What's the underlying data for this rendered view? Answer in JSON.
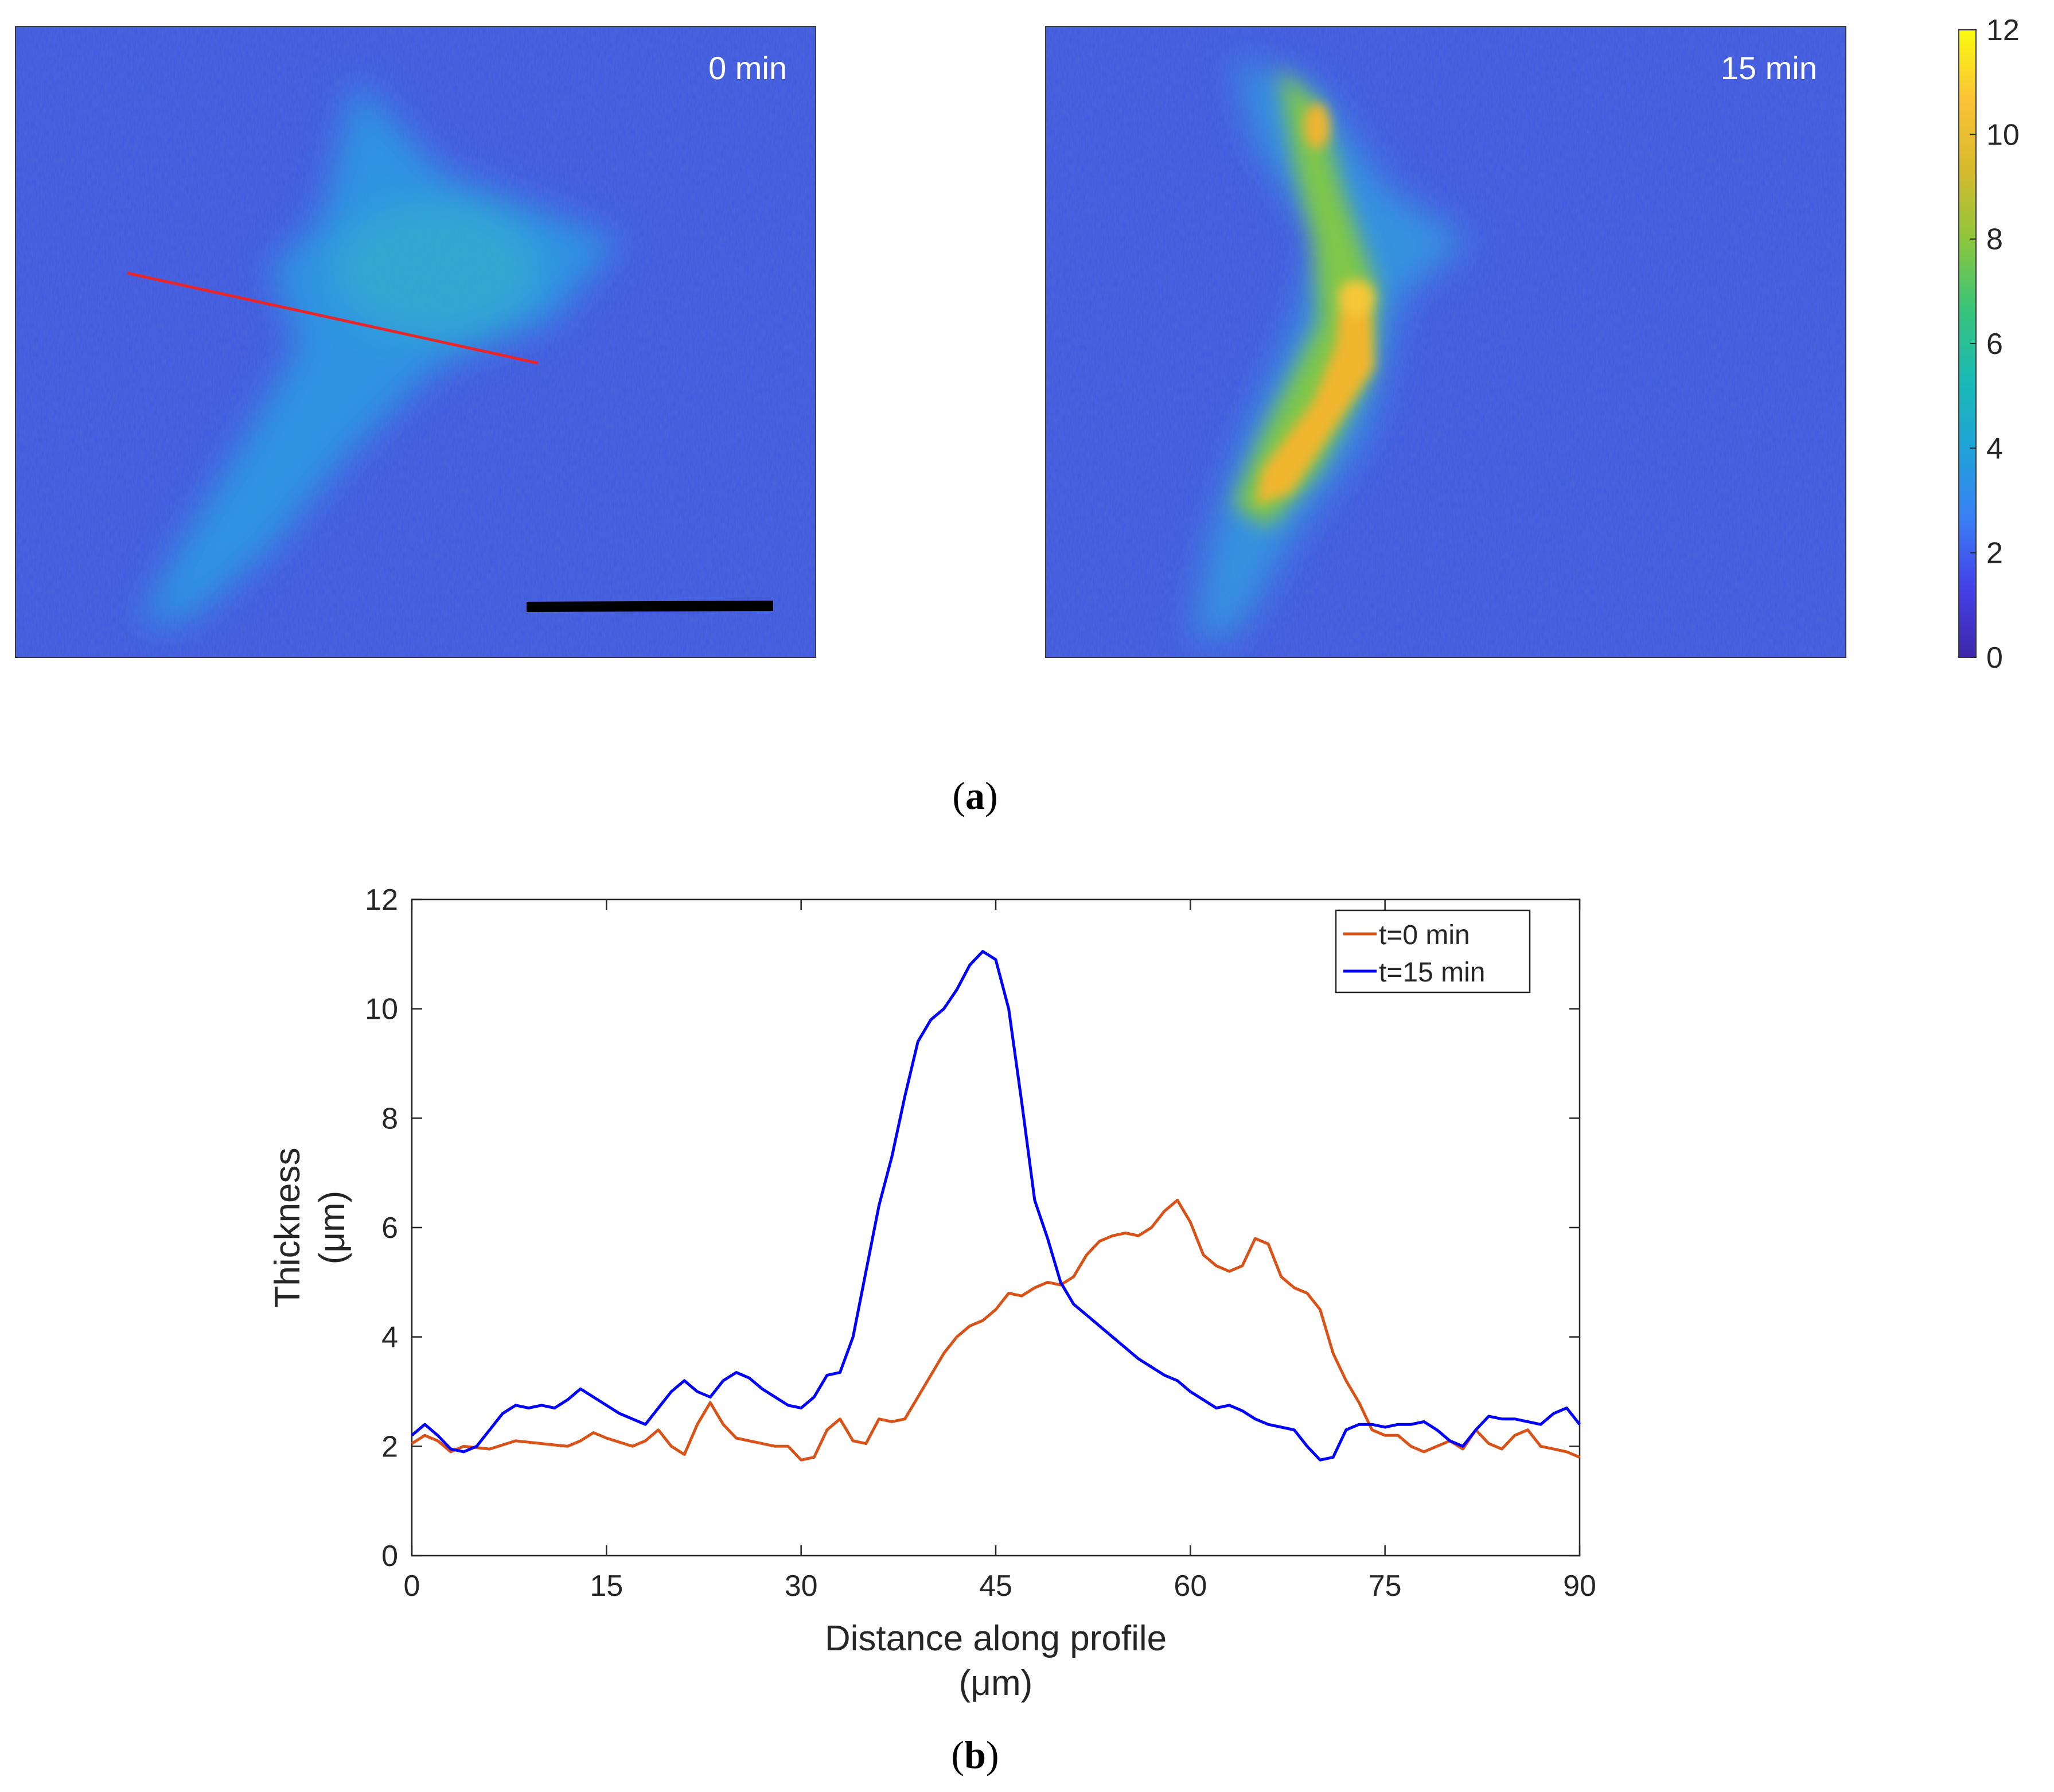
{
  "panel_a": {
    "label_open": "(",
    "label_letter": "a",
    "label_close": ")",
    "images": [
      {
        "timestamp": "0 min",
        "colors": {
          "background": "#3e58e0",
          "cell": "#33a8d6",
          "profile_line": "#e8262a",
          "scale_bar": "#000000"
        }
      },
      {
        "timestamp": "15 min",
        "colors": {
          "background": "#3e58e0",
          "cell": "#33a8d6",
          "cell_core": "#f0b52d",
          "cell_peak": "#f6d23a"
        }
      }
    ],
    "colorbar": {
      "ticks": [
        "0",
        "2",
        "4",
        "6",
        "8",
        "10",
        "12"
      ],
      "colormap": [
        "#3e26a8",
        "#4440e8",
        "#3a7ff4",
        "#1fa3d8",
        "#1cbab4",
        "#38c47a",
        "#8ec63c",
        "#d7ba2d",
        "#fbc338",
        "#f9fb0e"
      ]
    }
  },
  "panel_b": {
    "label_open": "(",
    "label_letter": "b",
    "label_close": ")"
  },
  "chart_data": {
    "type": "line",
    "xlabel": "Distance along profile",
    "xlabel_unit": "(μm)",
    "ylabel": "Thickness",
    "ylabel_unit": "(μm)",
    "xlim": [
      0,
      90
    ],
    "ylim": [
      0,
      12
    ],
    "xticks": [
      0,
      15,
      30,
      45,
      60,
      75,
      90
    ],
    "yticks": [
      0,
      2,
      4,
      6,
      8,
      10,
      12
    ],
    "legend_position": "top-right",
    "series": [
      {
        "name": "t=0 min",
        "color": "#d95319",
        "x": [
          0,
          1,
          2,
          3,
          4,
          6,
          8,
          10,
          12,
          13,
          14,
          15,
          17,
          18,
          19,
          20,
          21,
          22,
          23,
          24,
          25,
          26,
          28,
          29,
          30,
          31,
          32,
          33,
          34,
          35,
          36,
          37,
          38,
          39,
          40,
          41,
          42,
          43,
          44,
          45,
          46,
          47,
          48,
          49,
          50,
          51,
          52,
          53,
          54,
          55,
          56,
          57,
          58,
          59,
          60,
          61,
          62,
          63,
          64,
          65,
          66,
          67,
          68,
          69,
          70,
          71,
          72,
          73,
          74,
          75,
          76,
          77,
          78,
          79,
          80,
          81,
          82,
          83,
          84,
          85,
          86,
          87,
          88,
          89,
          90
        ],
        "values": [
          2.05,
          2.2,
          2.1,
          1.9,
          2.0,
          1.95,
          2.1,
          2.05,
          2.0,
          2.1,
          2.25,
          2.15,
          2.0,
          2.1,
          2.3,
          2.0,
          1.85,
          2.4,
          2.8,
          2.4,
          2.15,
          2.1,
          2.0,
          2.0,
          1.75,
          1.8,
          2.3,
          2.5,
          2.1,
          2.05,
          2.5,
          2.45,
          2.5,
          2.9,
          3.3,
          3.7,
          4.0,
          4.2,
          4.3,
          4.5,
          4.8,
          4.75,
          4.9,
          5.0,
          4.95,
          5.1,
          5.5,
          5.75,
          5.85,
          5.9,
          5.85,
          6.0,
          6.3,
          6.5,
          6.1,
          5.5,
          5.3,
          5.2,
          5.3,
          5.8,
          5.7,
          5.1,
          4.9,
          4.8,
          4.5,
          3.7,
          3.2,
          2.8,
          2.3,
          2.2,
          2.2,
          2.0,
          1.9,
          2.0,
          2.1,
          1.95,
          2.3,
          2.05,
          1.95,
          2.2,
          2.3,
          2.0,
          1.95,
          1.9,
          1.8
        ]
      },
      {
        "name": "t=15 min",
        "color": "#0000ff",
        "x": [
          0,
          1,
          2,
          3,
          4,
          5,
          6,
          7,
          8,
          9,
          10,
          11,
          12,
          13,
          14,
          15,
          16,
          17,
          18,
          19,
          20,
          21,
          22,
          23,
          24,
          25,
          26,
          27,
          28,
          29,
          30,
          31,
          32,
          33,
          34,
          35,
          36,
          37,
          38,
          39,
          40,
          41,
          42,
          43,
          44,
          45,
          46,
          47,
          48,
          49,
          50,
          51,
          52,
          53,
          54,
          55,
          56,
          57,
          58,
          59,
          60,
          61,
          62,
          63,
          64,
          65,
          66,
          67,
          68,
          69,
          70,
          71,
          72,
          73,
          74,
          75,
          76,
          77,
          78,
          79,
          80,
          81,
          82,
          83,
          84,
          85,
          86,
          87,
          88,
          89,
          90
        ],
        "values": [
          2.2,
          2.4,
          2.2,
          1.95,
          1.9,
          2.0,
          2.3,
          2.6,
          2.75,
          2.7,
          2.75,
          2.7,
          2.85,
          3.05,
          2.9,
          2.75,
          2.6,
          2.5,
          2.4,
          2.7,
          3.0,
          3.2,
          3.0,
          2.9,
          3.2,
          3.35,
          3.25,
          3.05,
          2.9,
          2.75,
          2.7,
          2.9,
          3.3,
          3.35,
          4.0,
          5.2,
          6.4,
          7.3,
          8.4,
          9.4,
          9.8,
          10.0,
          10.35,
          10.8,
          11.05,
          10.9,
          10.0,
          8.3,
          6.5,
          5.8,
          5.0,
          4.6,
          4.4,
          4.2,
          4.0,
          3.8,
          3.6,
          3.45,
          3.3,
          3.2,
          3.0,
          2.85,
          2.7,
          2.75,
          2.65,
          2.5,
          2.4,
          2.35,
          2.3,
          2.0,
          1.75,
          1.8,
          2.3,
          2.4,
          2.4,
          2.35,
          2.4,
          2.4,
          2.45,
          2.3,
          2.1,
          2.0,
          2.3,
          2.55,
          2.5,
          2.5,
          2.45,
          2.4,
          2.6,
          2.7,
          2.4
        ]
      }
    ]
  }
}
